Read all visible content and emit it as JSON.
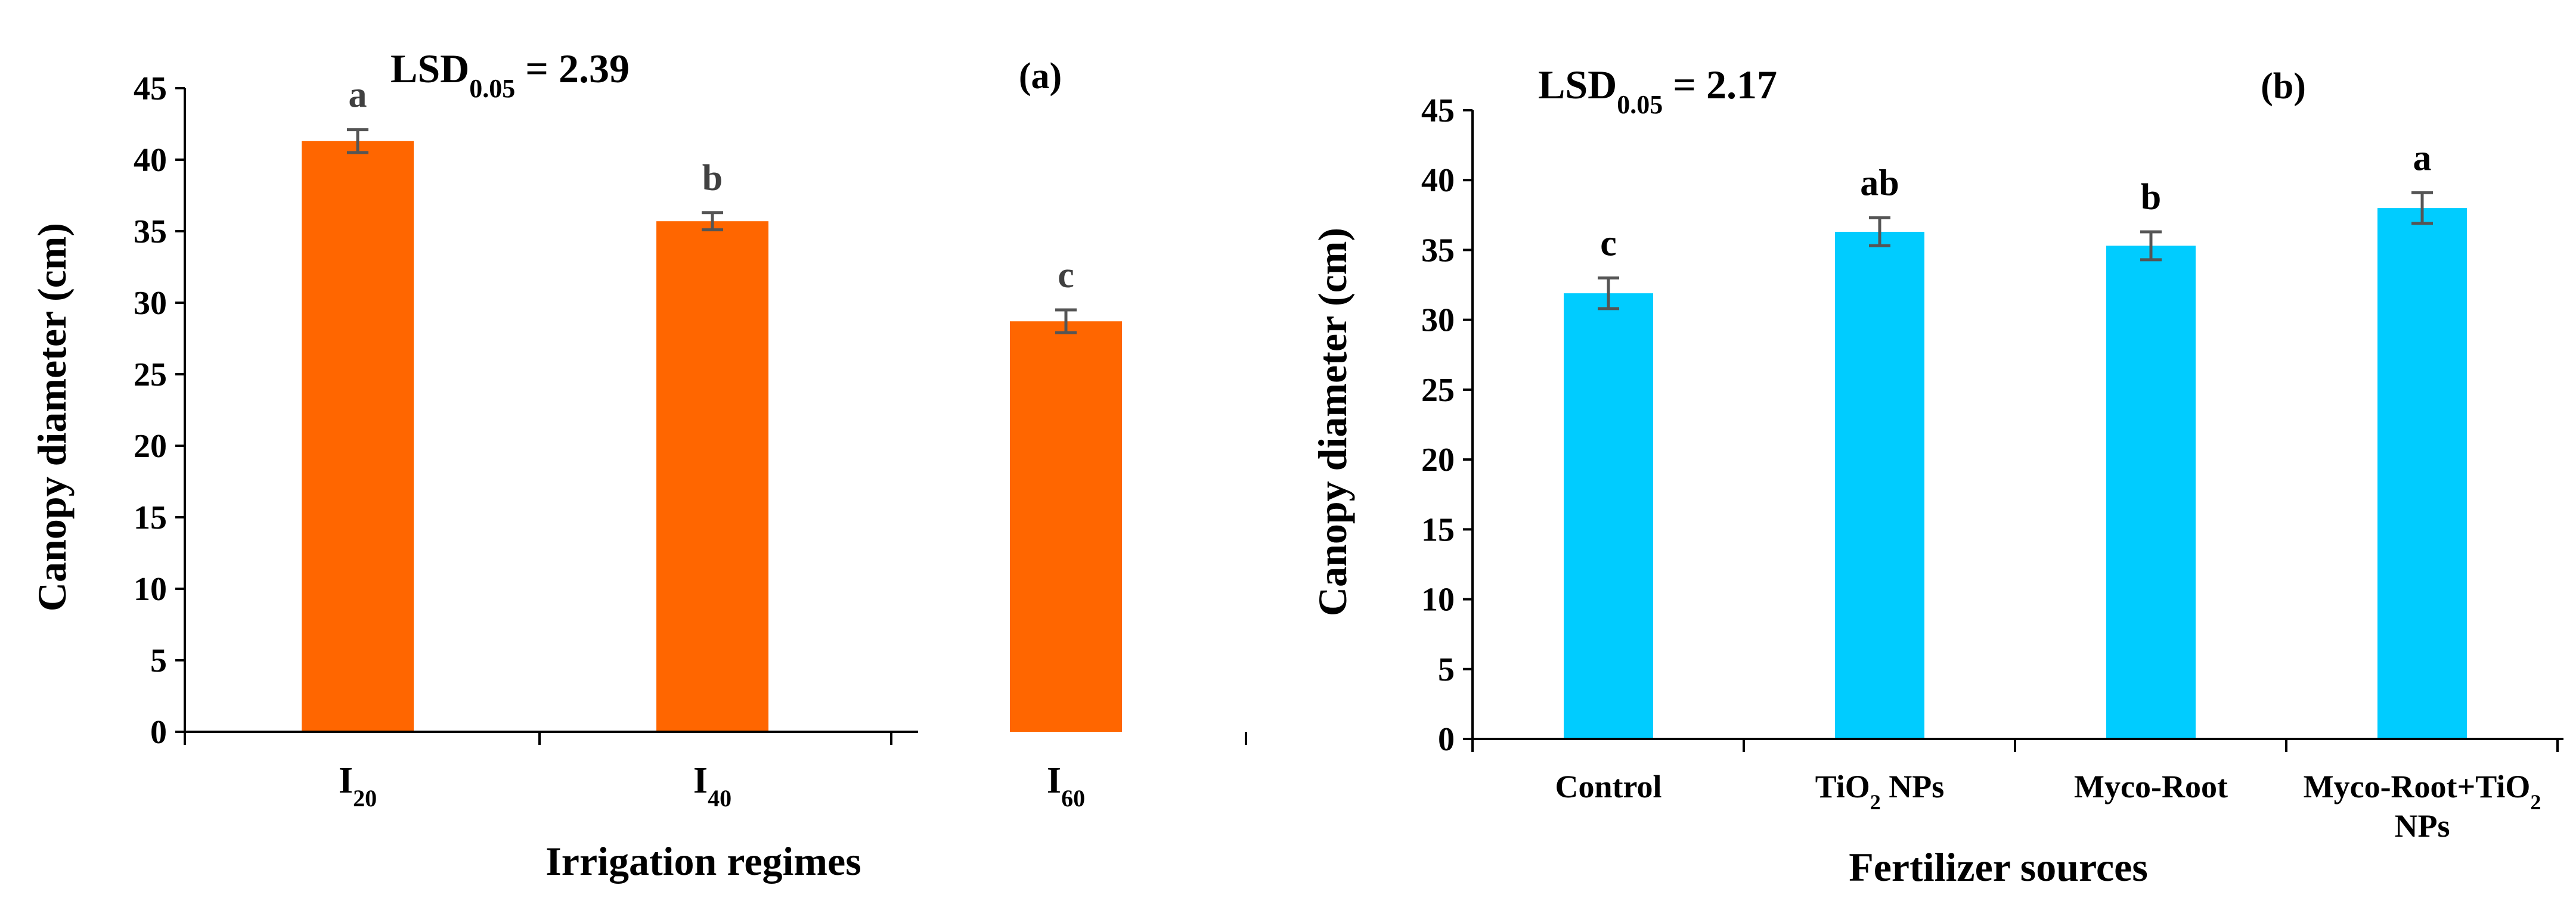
{
  "chart_data": [
    {
      "panel": "(a)",
      "type": "bar",
      "title": "",
      "xlabel": "Irrigation regimes",
      "ylabel": "Canopy diameter (cm)",
      "ylim": [
        0,
        45
      ],
      "yticks": [
        0,
        5,
        10,
        15,
        20,
        25,
        30,
        35,
        40,
        45
      ],
      "bar_color": "#ff6600",
      "letter_colors": [
        "#404040",
        "#404040",
        "#404040"
      ],
      "lsd": {
        "prefix": "LSD",
        "sub": "0.05",
        "value": " = 2.39"
      },
      "categories": [
        {
          "main": "I",
          "sub": "20"
        },
        {
          "main": "I",
          "sub": "40"
        },
        {
          "main": "I",
          "sub": "60"
        }
      ],
      "values": [
        41.3,
        35.7,
        28.7
      ],
      "errors": [
        0.8,
        0.6,
        0.8
      ],
      "letters": [
        "a",
        "b",
        "c"
      ]
    },
    {
      "panel": "(b)",
      "type": "bar",
      "title": "",
      "xlabel": "Fertilizer sources",
      "ylabel": "Canopy diameter (cm)",
      "ylim": [
        0,
        45
      ],
      "yticks": [
        0,
        5,
        10,
        15,
        20,
        25,
        30,
        35,
        40,
        45
      ],
      "bar_color": "#00ccff",
      "letter_colors": [
        "#000000",
        "#000000",
        "#000000",
        "#000000"
      ],
      "lsd": {
        "prefix": "LSD",
        "sub": "0.05",
        "value": " = 2.17"
      },
      "categories": [
        {
          "lines": [
            [
              "Control"
            ]
          ]
        },
        {
          "lines": [
            [
              "TiO",
              "2",
              " NPs"
            ]
          ]
        },
        {
          "lines": [
            [
              "Myco-Root"
            ]
          ]
        },
        {
          "lines": [
            [
              "Myco-Root+TiO",
              "2"
            ],
            [
              "NPs"
            ]
          ]
        }
      ],
      "values": [
        31.9,
        36.3,
        35.3,
        38.0
      ],
      "errors": [
        1.1,
        1.0,
        1.0,
        1.1
      ],
      "letters": [
        "c",
        "ab",
        "b",
        "a"
      ]
    }
  ]
}
